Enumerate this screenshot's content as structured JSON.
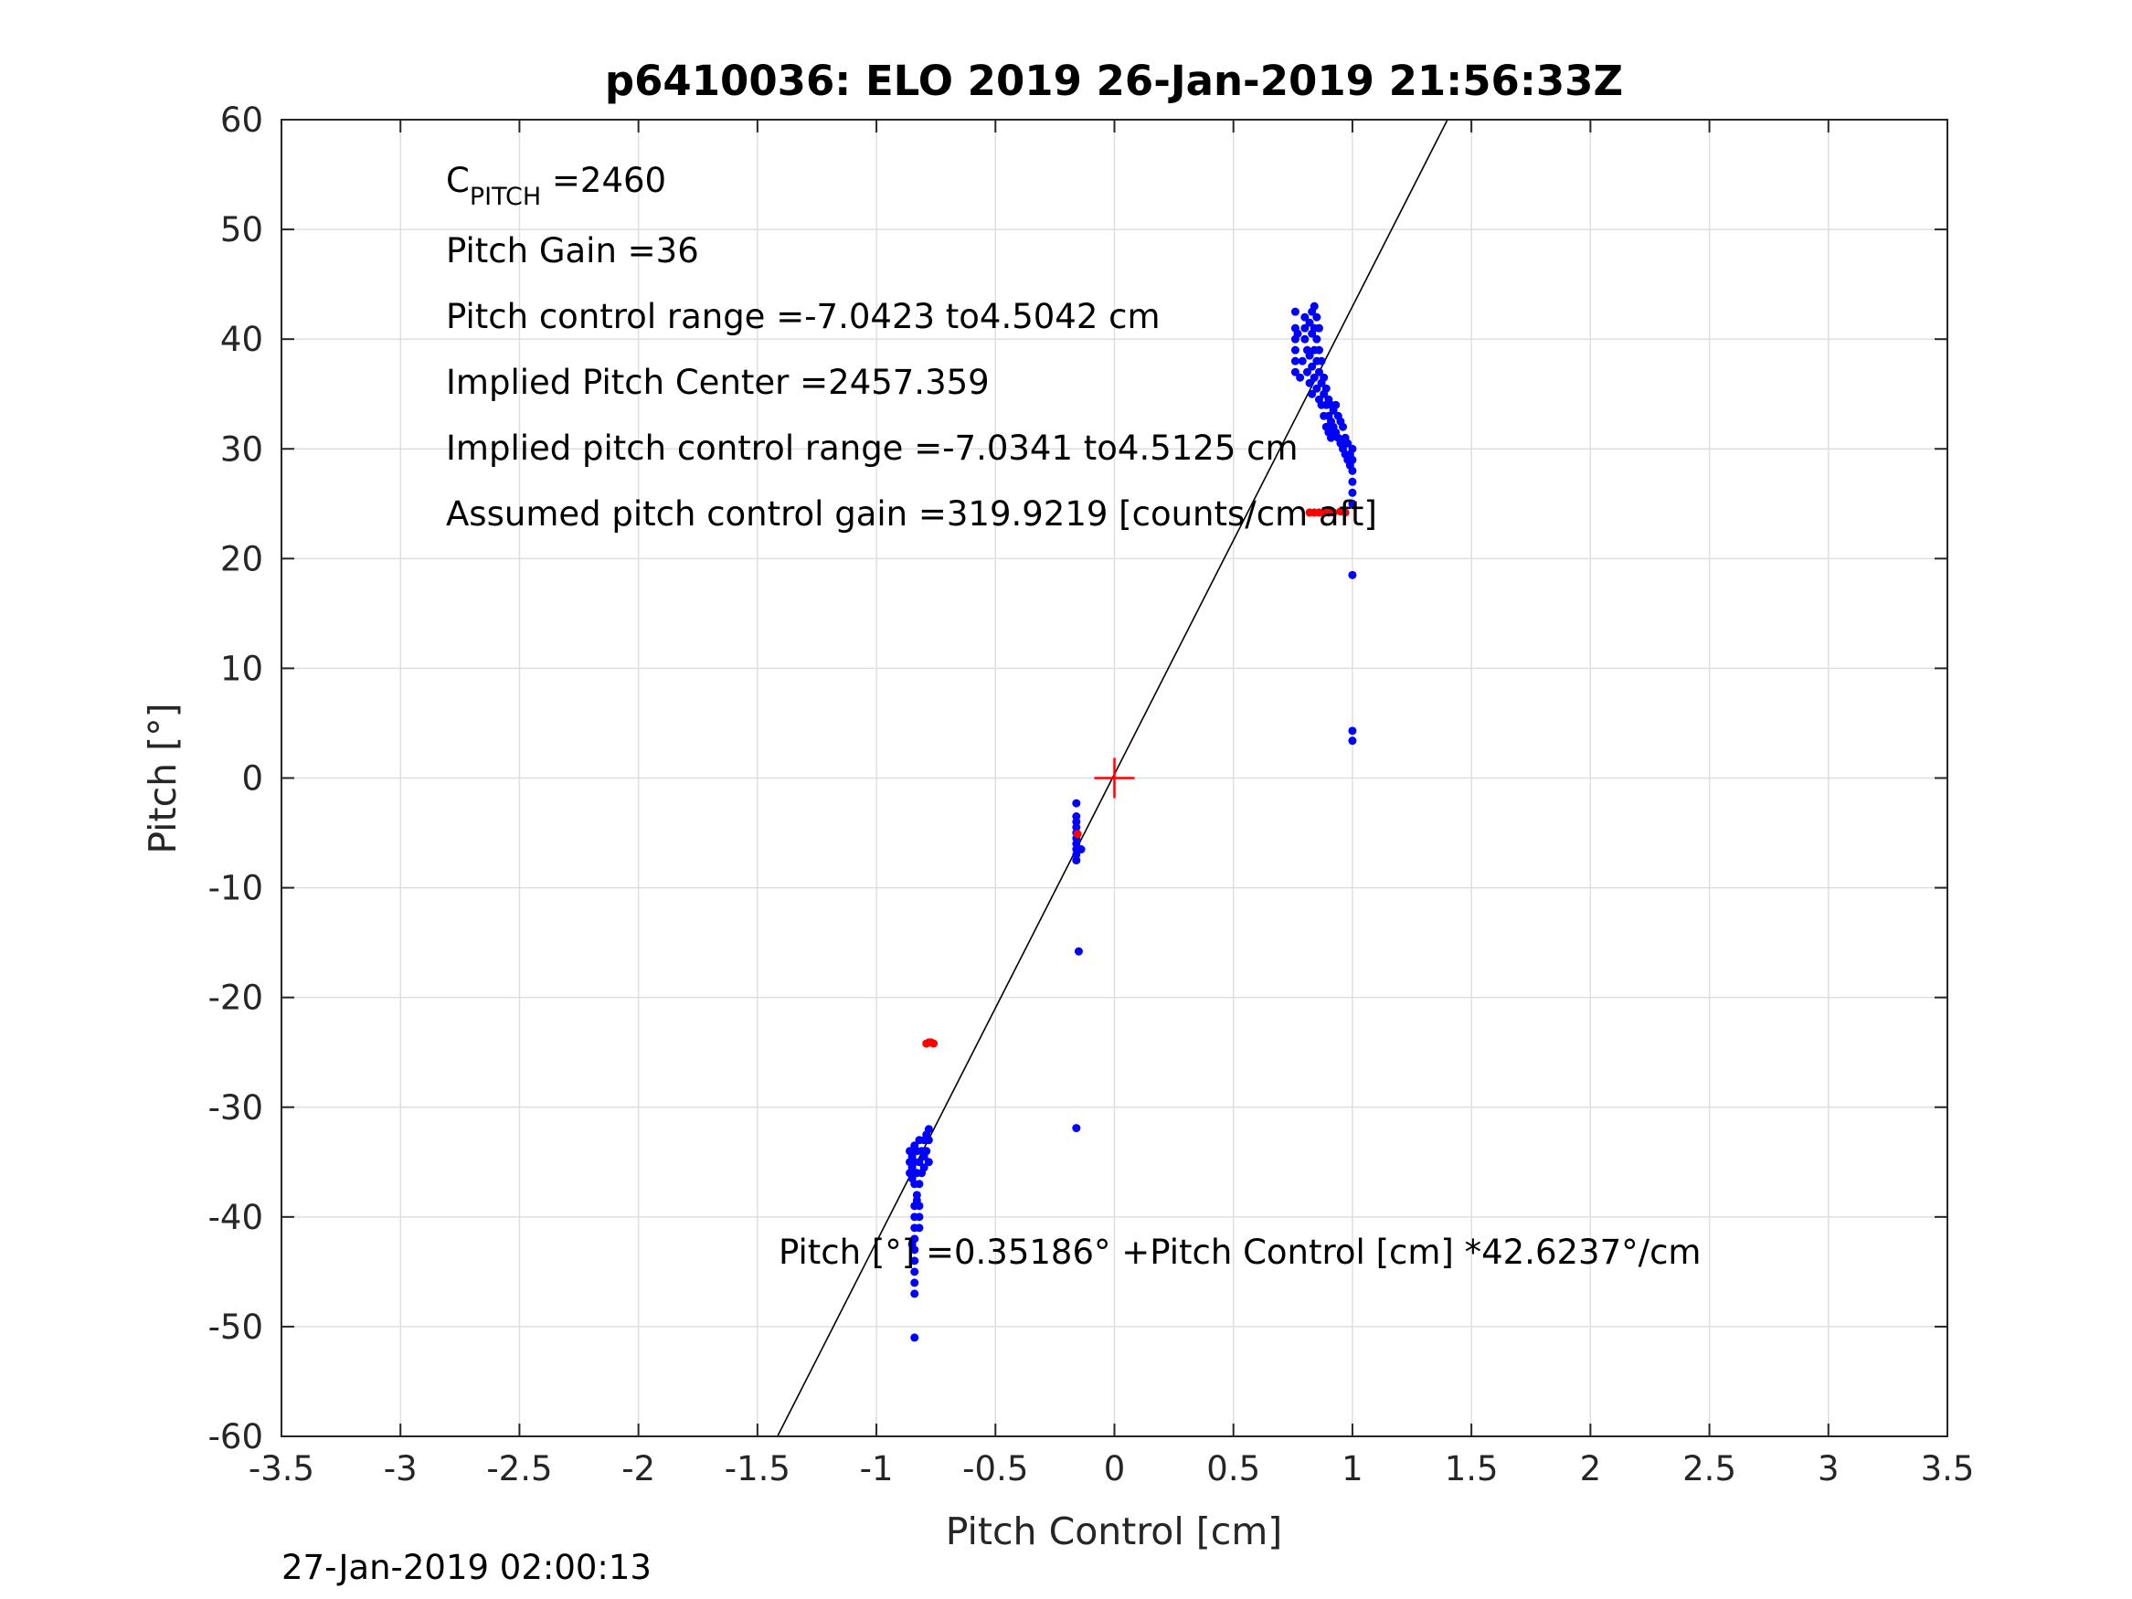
{
  "chart_data": {
    "type": "scatter",
    "title": "p6410036: ELO 2019 26-Jan-2019 21:56:33Z",
    "xlabel": "Pitch Control [cm]",
    "ylabel": "Pitch [°]",
    "xlim": [
      -3.5,
      3.5
    ],
    "ylim": [
      -60,
      60
    ],
    "xticks": [
      "-3.5",
      "-3",
      "-2.5",
      "-2",
      "-1.5",
      "-1",
      "-0.5",
      "0",
      "0.5",
      "1",
      "1.5",
      "2",
      "2.5",
      "3",
      "3.5"
    ],
    "yticks": [
      "60",
      "50",
      "40",
      "30",
      "20",
      "10",
      "0",
      "-10",
      "-20",
      "-30",
      "-40",
      "-50",
      "-60"
    ],
    "grid": true,
    "annotations": {
      "cpitch_main": "C",
      "cpitch_sub": "PITCH",
      "cpitch_value": " =2460",
      "pitch_gain": "Pitch Gain =36",
      "control_range": "Pitch control range =-7.0423 to4.5042 cm",
      "implied_center": "Implied Pitch Center =2457.359",
      "implied_range": "Implied pitch control range =-7.0341 to4.5125 cm",
      "assumed_gain": "Assumed pitch control gain =319.9219 [counts/cm aft]",
      "fit_equation": "Pitch [°] =0.35186° +Pitch Control [cm] *42.6237°/cm"
    },
    "fit_line": {
      "intercept": 0.35186,
      "slope": 42.6237
    },
    "center_marker": {
      "x": 0,
      "y": 0
    },
    "series": [
      {
        "color": "#0000ff",
        "points": [
          [
            -0.86,
            -34
          ],
          [
            -0.86,
            -35
          ],
          [
            -0.86,
            -36
          ],
          [
            -0.85,
            -34.5
          ],
          [
            -0.85,
            -35.5
          ],
          [
            -0.85,
            -36.5
          ],
          [
            -0.84,
            -33.5
          ],
          [
            -0.84,
            -35
          ],
          [
            -0.84,
            -37
          ],
          [
            -0.83,
            -34
          ],
          [
            -0.83,
            -36
          ],
          [
            -0.83,
            -38
          ],
          [
            -0.82,
            -33
          ],
          [
            -0.82,
            -35
          ],
          [
            -0.82,
            -37
          ],
          [
            -0.81,
            -34
          ],
          [
            -0.81,
            -36
          ],
          [
            -0.8,
            -33
          ],
          [
            -0.8,
            -34.5
          ],
          [
            -0.8,
            -35.5
          ],
          [
            -0.79,
            -32.5
          ],
          [
            -0.79,
            -34
          ],
          [
            -0.78,
            -33
          ],
          [
            -0.78,
            -35
          ],
          [
            -0.78,
            -32
          ],
          [
            -0.84,
            -39
          ],
          [
            -0.84,
            -40
          ],
          [
            -0.84,
            -41
          ],
          [
            -0.84,
            -42
          ],
          [
            -0.84,
            -43
          ],
          [
            -0.84,
            -44
          ],
          [
            -0.84,
            -45
          ],
          [
            -0.84,
            -46
          ],
          [
            -0.84,
            -47
          ],
          [
            -0.85,
            -42.5
          ],
          [
            -0.82,
            -39
          ],
          [
            -0.82,
            -40
          ],
          [
            -0.82,
            -41
          ],
          [
            -0.83,
            -38.5
          ],
          [
            -0.84,
            -51
          ],
          [
            -0.16,
            -2.3
          ],
          [
            -0.16,
            -3.5
          ],
          [
            -0.16,
            -4
          ],
          [
            -0.16,
            -4.5
          ],
          [
            -0.16,
            -5
          ],
          [
            -0.16,
            -5.5
          ],
          [
            -0.16,
            -6
          ],
          [
            -0.16,
            -6.5
          ],
          [
            -0.16,
            -7
          ],
          [
            -0.16,
            -7.5
          ],
          [
            -0.14,
            -6.5
          ],
          [
            -0.15,
            -15.8
          ],
          [
            -0.16,
            -31.9
          ],
          [
            0.76,
            42.5
          ],
          [
            0.76,
            41
          ],
          [
            0.76,
            40
          ],
          [
            0.76,
            39
          ],
          [
            0.76,
            38
          ],
          [
            0.76,
            37
          ],
          [
            0.77,
            40.5
          ],
          [
            0.78,
            36.5
          ],
          [
            0.79,
            38
          ],
          [
            0.8,
            40
          ],
          [
            0.8,
            41
          ],
          [
            0.8,
            42
          ],
          [
            0.81,
            39
          ],
          [
            0.81,
            37
          ],
          [
            0.82,
            41.5
          ],
          [
            0.82,
            38.5
          ],
          [
            0.82,
            36
          ],
          [
            0.83,
            42.5
          ],
          [
            0.83,
            40.5
          ],
          [
            0.83,
            37.5
          ],
          [
            0.83,
            35
          ],
          [
            0.84,
            43
          ],
          [
            0.84,
            41
          ],
          [
            0.84,
            39
          ],
          [
            0.84,
            36.5
          ],
          [
            0.85,
            42
          ],
          [
            0.85,
            40
          ],
          [
            0.85,
            38
          ],
          [
            0.85,
            35.5
          ],
          [
            0.86,
            41
          ],
          [
            0.86,
            39
          ],
          [
            0.86,
            37
          ],
          [
            0.86,
            34.5
          ],
          [
            0.87,
            38
          ],
          [
            0.87,
            36
          ],
          [
            0.87,
            34
          ],
          [
            0.88,
            36.5
          ],
          [
            0.88,
            35
          ],
          [
            0.88,
            33
          ],
          [
            0.89,
            35.5
          ],
          [
            0.89,
            34
          ],
          [
            0.89,
            32
          ],
          [
            0.9,
            34.5
          ],
          [
            0.9,
            33
          ],
          [
            0.9,
            31.5
          ],
          [
            0.91,
            34
          ],
          [
            0.91,
            32.5
          ],
          [
            0.91,
            31
          ],
          [
            0.92,
            33.5
          ],
          [
            0.92,
            32
          ],
          [
            0.93,
            34
          ],
          [
            0.93,
            31.5
          ],
          [
            0.94,
            33
          ],
          [
            0.94,
            31
          ],
          [
            0.95,
            32.5
          ],
          [
            0.95,
            30.5
          ],
          [
            0.96,
            32
          ],
          [
            0.96,
            30
          ],
          [
            0.97,
            31
          ],
          [
            0.97,
            29.5
          ],
          [
            0.98,
            30.5
          ],
          [
            0.98,
            29
          ],
          [
            0.99,
            29.5
          ],
          [
            0.99,
            28.5
          ],
          [
            1.0,
            30
          ],
          [
            1.0,
            29
          ],
          [
            1.0,
            28
          ],
          [
            1.0,
            27
          ],
          [
            1.0,
            26
          ],
          [
            1.0,
            25
          ],
          [
            1.0,
            18.5
          ],
          [
            1.0,
            4.3
          ],
          [
            1.0,
            3.4
          ]
        ]
      },
      {
        "color": "#ff0000",
        "points": [
          [
            -0.79,
            -24.2
          ],
          [
            -0.78,
            -24.1
          ],
          [
            -0.77,
            -24.1
          ],
          [
            -0.76,
            -24.2
          ],
          [
            -0.155,
            -5.1
          ],
          [
            0.82,
            24.2
          ],
          [
            0.84,
            24.2
          ],
          [
            0.86,
            24.2
          ],
          [
            0.88,
            24.2
          ],
          [
            0.9,
            24.2
          ],
          [
            0.92,
            24.2
          ],
          [
            0.95,
            24.3
          ],
          [
            0.97,
            24.2
          ]
        ]
      }
    ],
    "footer_timestamp": "27-Jan-2019 02:00:13"
  }
}
